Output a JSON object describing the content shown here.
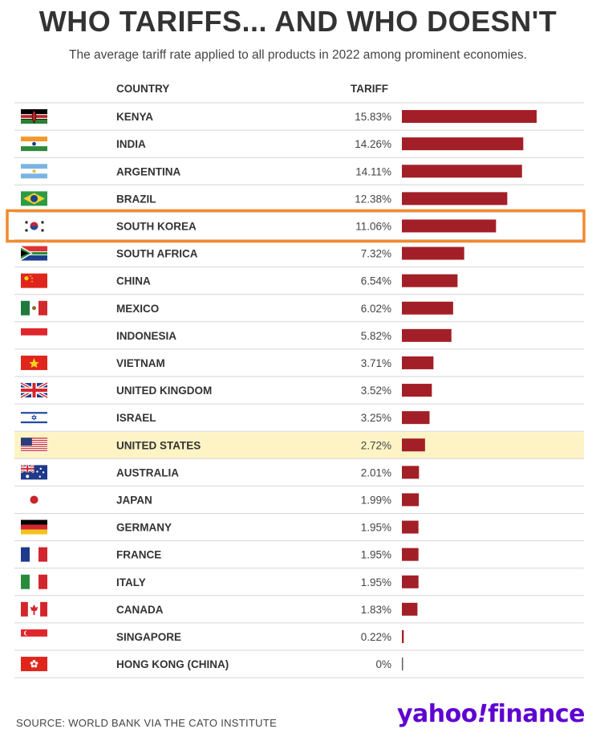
{
  "title": "WHO TARIFFS... AND WHO DOESN'T",
  "subtitle": "The average tariff rate applied to all products in 2022 among prominent economies.",
  "column_headers": {
    "country": "COUNTRY",
    "tariff": "TARIFF"
  },
  "source": "SOURCE: WORLD BANK VIA THE CATO INSTITUTE",
  "logo": {
    "brand": "yahoo",
    "mark": "!",
    "product": "finance"
  },
  "colors": {
    "bar": "#a31f27",
    "highlight_row": "#fdf3c4",
    "highlight_box": "#f28a2e",
    "brand": "#5f01d1"
  },
  "chart_data": {
    "type": "bar",
    "orientation": "horizontal",
    "categories": [
      "KENYA",
      "INDIA",
      "ARGENTINA",
      "BRAZIL",
      "SOUTH KOREA",
      "SOUTH AFRICA",
      "CHINA",
      "MEXICO",
      "INDONESIA",
      "VIETNAM",
      "UNITED KINGDOM",
      "ISRAEL",
      "UNITED STATES",
      "AUSTRALIA",
      "JAPAN",
      "GERMANY",
      "FRANCE",
      "ITALY",
      "CANADA",
      "SINGAPORE",
      "HONG KONG (CHINA)"
    ],
    "values": [
      15.83,
      14.26,
      14.11,
      12.38,
      11.06,
      7.32,
      6.54,
      6.02,
      5.82,
      3.71,
      3.52,
      3.25,
      2.72,
      2.01,
      1.99,
      1.95,
      1.95,
      1.95,
      1.83,
      0.22,
      0
    ],
    "value_labels": [
      "15.83%",
      "14.26%",
      "14.11%",
      "12.38%",
      "11.06%",
      "7.32%",
      "6.54%",
      "6.02%",
      "5.82%",
      "3.71%",
      "3.52%",
      "3.25%",
      "2.72%",
      "2.01%",
      "1.99%",
      "1.95%",
      "1.95%",
      "1.95%",
      "1.83%",
      "0.22%",
      "0%"
    ],
    "flags": [
      "kenya-flag",
      "india-flag",
      "argentina-flag",
      "brazil-flag",
      "south-korea-flag",
      "south-africa-flag",
      "china-flag",
      "mexico-flag",
      "indonesia-flag",
      "vietnam-flag",
      "united-kingdom-flag",
      "israel-flag",
      "united-states-flag",
      "australia-flag",
      "japan-flag",
      "germany-flag",
      "france-flag",
      "italy-flag",
      "canada-flag",
      "singapore-flag",
      "hong-kong-flag"
    ],
    "highlighted_row": "UNITED STATES",
    "boxed_row": "SOUTH KOREA",
    "unit": "%"
  }
}
